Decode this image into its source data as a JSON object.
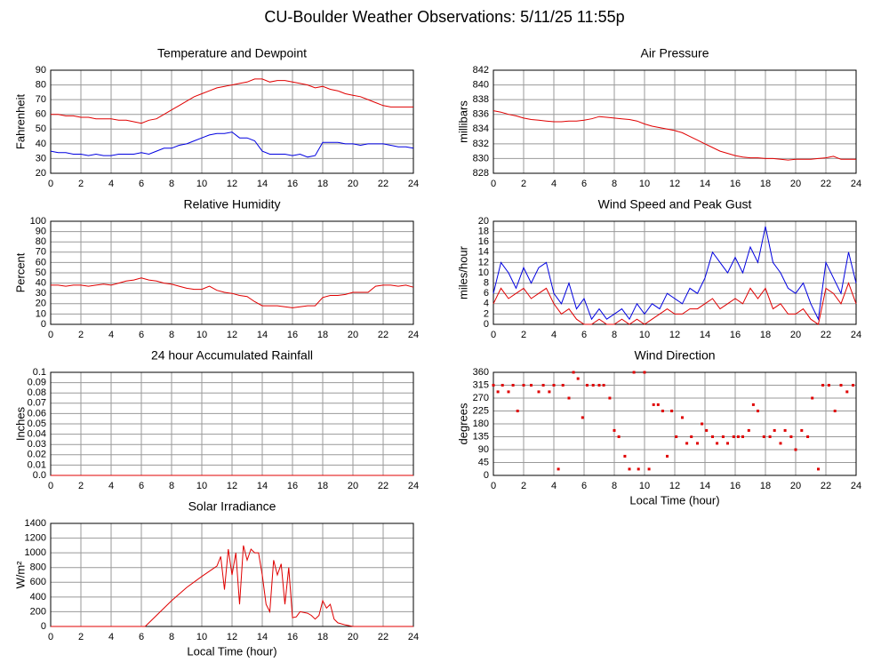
{
  "title": "CU-Boulder Weather Observations: 5/11/25 11:55p",
  "chart_data": [
    {
      "type": "line",
      "title": "Temperature and Dewpoint",
      "y_label": "Fahrenheit",
      "x": [
        0,
        0.5,
        1,
        1.5,
        2,
        2.5,
        3,
        3.5,
        4,
        4.5,
        5,
        5.5,
        6,
        6.5,
        7,
        7.5,
        8,
        8.5,
        9,
        9.5,
        10,
        10.5,
        11,
        11.5,
        12,
        12.5,
        13,
        13.5,
        14,
        14.5,
        15,
        15.5,
        16,
        16.5,
        17,
        17.5,
        18,
        18.5,
        19,
        19.5,
        20,
        20.5,
        21,
        21.5,
        22,
        22.5,
        23,
        23.5,
        24
      ],
      "series": [
        {
          "color": "#e00000",
          "values": [
            60,
            60,
            59,
            59,
            58,
            58,
            57,
            57,
            57,
            56,
            56,
            55,
            54,
            56,
            57,
            60,
            63,
            66,
            69,
            72,
            74,
            76,
            78,
            79,
            80,
            81,
            82,
            84,
            84,
            82,
            83,
            83,
            82,
            81,
            80,
            78,
            79,
            77,
            76,
            74,
            73,
            72,
            70,
            68,
            66,
            65,
            65,
            65,
            65
          ]
        },
        {
          "color": "#0000e0",
          "values": [
            35,
            34,
            34,
            33,
            33,
            32,
            33,
            32,
            32,
            33,
            33,
            33,
            34,
            33,
            35,
            37,
            37,
            39,
            40,
            42,
            44,
            46,
            47,
            47,
            48,
            44,
            44,
            42,
            35,
            33,
            33,
            33,
            32,
            33,
            31,
            32,
            41,
            41,
            41,
            40,
            40,
            39,
            40,
            40,
            40,
            39,
            38,
            38,
            37
          ]
        }
      ],
      "xlim": [
        0,
        24
      ],
      "xticks": [
        0,
        2,
        4,
        6,
        8,
        10,
        12,
        14,
        16,
        18,
        20,
        22,
        24
      ],
      "ylim": [
        20,
        90
      ],
      "yticks": [
        20,
        30,
        40,
        50,
        60,
        70,
        80,
        90
      ],
      "grid": true
    },
    {
      "type": "line",
      "title": "Air Pressure",
      "y_label": "millibars",
      "x": [
        0,
        0.5,
        1,
        1.5,
        2,
        2.5,
        3,
        3.5,
        4,
        4.5,
        5,
        5.5,
        6,
        6.5,
        7,
        7.5,
        8,
        8.5,
        9,
        9.5,
        10,
        10.5,
        11,
        11.5,
        12,
        12.5,
        13,
        13.5,
        14,
        14.5,
        15,
        15.5,
        16,
        16.5,
        17,
        17.5,
        18,
        18.5,
        19,
        19.5,
        20,
        20.5,
        21,
        21.5,
        22,
        22.5,
        23,
        23.5,
        24
      ],
      "series": [
        {
          "color": "#e00000",
          "values": [
            836.5,
            836.3,
            836,
            835.8,
            835.5,
            835.3,
            835.2,
            835.1,
            835,
            835,
            835.1,
            835.1,
            835.2,
            835.4,
            835.7,
            835.6,
            835.5,
            835.4,
            835.3,
            835.1,
            834.7,
            834.4,
            834.2,
            834,
            833.8,
            833.5,
            833,
            832.5,
            832,
            831.5,
            831,
            830.7,
            830.4,
            830.2,
            830.1,
            830.1,
            830,
            830,
            829.9,
            829.8,
            829.9,
            829.9,
            829.9,
            830,
            830.1,
            830.3,
            829.9,
            829.9,
            829.9
          ]
        }
      ],
      "xlim": [
        0,
        24
      ],
      "xticks": [
        0,
        2,
        4,
        6,
        8,
        10,
        12,
        14,
        16,
        18,
        20,
        22,
        24
      ],
      "ylim": [
        828,
        842
      ],
      "yticks": [
        828,
        830,
        832,
        834,
        836,
        838,
        840,
        842
      ],
      "grid": true
    },
    {
      "type": "line",
      "title": "Relative Humidity",
      "y_label": "Percent",
      "x": [
        0,
        0.5,
        1,
        1.5,
        2,
        2.5,
        3,
        3.5,
        4,
        4.5,
        5,
        5.5,
        6,
        6.5,
        7,
        7.5,
        8,
        8.5,
        9,
        9.5,
        10,
        10.5,
        11,
        11.5,
        12,
        12.5,
        13,
        13.5,
        14,
        14.5,
        15,
        15.5,
        16,
        16.5,
        17,
        17.5,
        18,
        18.5,
        19,
        19.5,
        20,
        20.5,
        21,
        21.5,
        22,
        22.5,
        23,
        23.5,
        24
      ],
      "series": [
        {
          "color": "#e00000",
          "values": [
            38,
            38,
            37,
            38,
            38,
            37,
            38,
            39,
            38,
            40,
            42,
            43,
            45,
            43,
            42,
            40,
            39,
            37,
            35,
            34,
            34,
            37,
            33,
            31,
            30,
            28,
            27,
            22,
            18,
            18,
            18,
            17,
            16,
            17,
            18,
            18,
            26,
            28,
            28,
            29,
            31,
            31,
            31,
            37,
            38,
            38,
            37,
            38,
            36
          ]
        }
      ],
      "xlim": [
        0,
        24
      ],
      "xticks": [
        0,
        2,
        4,
        6,
        8,
        10,
        12,
        14,
        16,
        18,
        20,
        22,
        24
      ],
      "ylim": [
        0,
        100
      ],
      "yticks": [
        0,
        10,
        20,
        30,
        40,
        50,
        60,
        70,
        80,
        90,
        100
      ],
      "grid": true
    },
    {
      "type": "line",
      "title": "Wind Speed and Peak Gust",
      "y_label": "miles/hour",
      "x": [
        0,
        0.5,
        1,
        1.5,
        2,
        2.5,
        3,
        3.5,
        4,
        4.5,
        5,
        5.5,
        6,
        6.5,
        7,
        7.5,
        8,
        8.5,
        9,
        9.5,
        10,
        10.5,
        11,
        11.5,
        12,
        12.5,
        13,
        13.5,
        14,
        14.5,
        15,
        15.5,
        16,
        16.5,
        17,
        17.5,
        18,
        18.5,
        19,
        19.5,
        20,
        20.5,
        21,
        21.5,
        22,
        22.5,
        23,
        23.5,
        24
      ],
      "series": [
        {
          "color": "#0000e0",
          "values": [
            6,
            12,
            10,
            7,
            11,
            8,
            11,
            12,
            6,
            4,
            8,
            3,
            5,
            1,
            3,
            1,
            2,
            3,
            1,
            4,
            2,
            4,
            3,
            6,
            5,
            4,
            7,
            6,
            9,
            14,
            12,
            10,
            13,
            10,
            15,
            12,
            19,
            12,
            10,
            7,
            6,
            8,
            4,
            1,
            12,
            9,
            6,
            14,
            8
          ]
        },
        {
          "color": "#e00000",
          "values": [
            4,
            7,
            5,
            6,
            7,
            5,
            6,
            7,
            4,
            2,
            3,
            1,
            0,
            0,
            1,
            0,
            0,
            1,
            0,
            1,
            0,
            1,
            2,
            3,
            2,
            2,
            3,
            3,
            4,
            5,
            3,
            4,
            5,
            4,
            7,
            5,
            7,
            3,
            4,
            2,
            2,
            3,
            1,
            0,
            7,
            6,
            4,
            8,
            4
          ]
        }
      ],
      "xlim": [
        0,
        24
      ],
      "xticks": [
        0,
        2,
        4,
        6,
        8,
        10,
        12,
        14,
        16,
        18,
        20,
        22,
        24
      ],
      "ylim": [
        0,
        20
      ],
      "yticks": [
        0,
        2,
        4,
        6,
        8,
        10,
        12,
        14,
        16,
        18,
        20
      ],
      "grid": true
    },
    {
      "type": "line",
      "title": "24 hour Accumulated Rainfall",
      "y_label": "Inches",
      "x": [
        0,
        24
      ],
      "series": [
        {
          "color": "#e00000",
          "values": [
            0,
            0
          ]
        }
      ],
      "xlim": [
        0,
        24
      ],
      "xticks": [
        0,
        2,
        4,
        6,
        8,
        10,
        12,
        14,
        16,
        18,
        20,
        22,
        24
      ],
      "ylim": [
        0,
        0.1
      ],
      "yticks": [
        {
          "value": 0,
          "label": "0.0"
        },
        0.01,
        0.02,
        0.03,
        0.04,
        0.05,
        0.06,
        0.07,
        0.08,
        0.09,
        0.1
      ],
      "grid": true
    },
    {
      "type": "scatter",
      "title": "Wind Direction",
      "y_label": "degrees",
      "x_label": "Local Time (hour)",
      "x": [
        0,
        0.3,
        0.6,
        1,
        1.3,
        1.6,
        2,
        2.5,
        3,
        3.3,
        3.7,
        4,
        4.3,
        4.6,
        5,
        5.3,
        5.6,
        5.9,
        6.2,
        6.6,
        7,
        7.3,
        7.7,
        8,
        8.3,
        8.7,
        9,
        9.3,
        9.6,
        10,
        10.3,
        10.6,
        10.9,
        11.2,
        11.5,
        11.8,
        12.1,
        12.5,
        12.8,
        13.1,
        13.5,
        13.8,
        14.1,
        14.5,
        14.8,
        15.2,
        15.5,
        15.9,
        16.2,
        16.5,
        16.9,
        17.2,
        17.5,
        17.9,
        18.3,
        18.6,
        19,
        19.3,
        19.7,
        20,
        20.4,
        20.8,
        21.1,
        21.5,
        21.8,
        22.2,
        22.6,
        23,
        23.4,
        23.8
      ],
      "series": [
        {
          "color": "#e00000",
          "values": [
            315,
            292,
            315,
            292,
            315,
            225,
            315,
            315,
            292,
            315,
            292,
            315,
            22,
            315,
            270,
            360,
            338,
            202,
            315,
            315,
            315,
            315,
            270,
            157,
            135,
            67,
            22,
            360,
            22,
            360,
            22,
            247,
            247,
            225,
            67,
            225,
            135,
            202,
            112,
            135,
            112,
            180,
            157,
            135,
            112,
            135,
            112,
            135,
            135,
            135,
            157,
            247,
            225,
            135,
            135,
            157,
            112,
            157,
            135,
            90,
            157,
            135,
            270,
            22,
            315,
            315,
            225,
            315,
            292,
            315
          ]
        }
      ],
      "xlim": [
        0,
        24
      ],
      "xticks": [
        0,
        2,
        4,
        6,
        8,
        10,
        12,
        14,
        16,
        18,
        20,
        22,
        24
      ],
      "ylim": [
        0,
        360
      ],
      "yticks": [
        0,
        45,
        90,
        135,
        180,
        225,
        270,
        315,
        360
      ],
      "grid": true
    },
    {
      "type": "line",
      "title": "Solar Irradiance",
      "y_label": "W/m²",
      "x_label": "Local Time (hour)",
      "x": [
        0,
        6,
        6.25,
        7,
        8,
        9,
        10,
        11,
        11.25,
        11.5,
        11.75,
        12,
        12.25,
        12.5,
        12.75,
        13,
        13.25,
        13.5,
        13.75,
        14,
        14.25,
        14.5,
        14.75,
        15,
        15.25,
        15.5,
        15.75,
        16,
        16.25,
        16.5,
        17,
        17.25,
        17.5,
        17.75,
        18,
        18.25,
        18.5,
        18.75,
        19,
        19.5,
        20,
        24
      ],
      "series": [
        {
          "color": "#e00000",
          "values": [
            0,
            0,
            0,
            150,
            350,
            530,
            680,
            820,
            950,
            500,
            1050,
            700,
            1000,
            300,
            1100,
            900,
            1050,
            1000,
            1000,
            700,
            300,
            200,
            900,
            700,
            850,
            300,
            800,
            120,
            130,
            200,
            180,
            150,
            100,
            150,
            350,
            250,
            300,
            100,
            50,
            20,
            0,
            0
          ]
        }
      ],
      "xlim": [
        0,
        24
      ],
      "xticks": [
        0,
        2,
        4,
        6,
        8,
        10,
        12,
        14,
        16,
        18,
        20,
        22,
        24
      ],
      "ylim": [
        0,
        1400
      ],
      "yticks": [
        0,
        200,
        400,
        600,
        800,
        1000,
        1200,
        1400
      ],
      "grid": true
    }
  ]
}
